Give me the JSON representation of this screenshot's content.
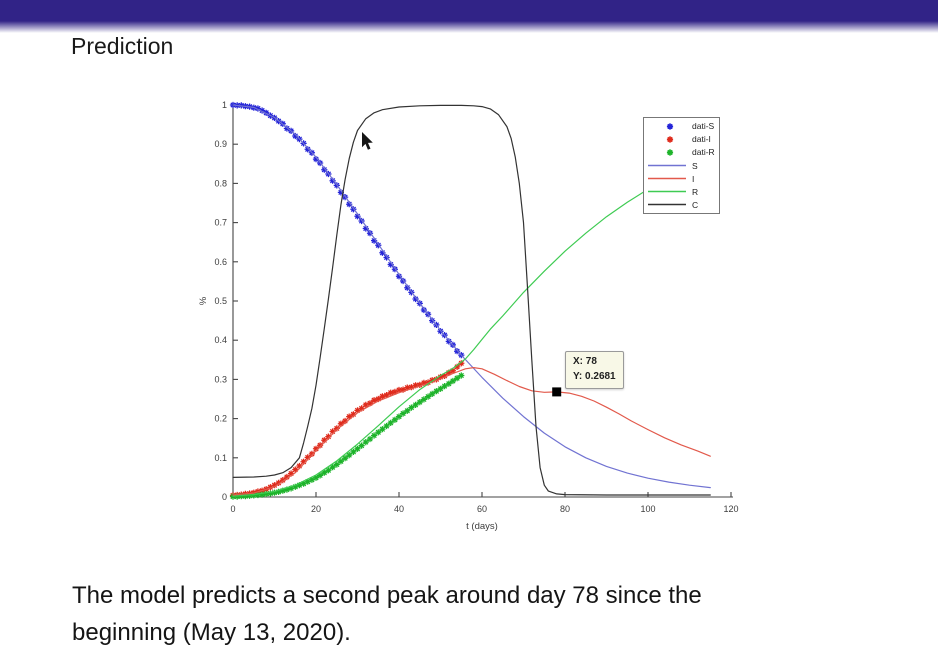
{
  "slide": {
    "title": "Prediction",
    "caption": {
      "line1": "The model predicts a second peak around day 78 since the",
      "line2": "beginning (May 13, 2020)."
    },
    "topbar_color": "#312387"
  },
  "tooltip": {
    "x_label": "X: 78",
    "y_label": "Y: 0.2681",
    "background": "#f8f8e7"
  },
  "chart_data": {
    "type": "line",
    "title": "",
    "xlabel": "t (days)",
    "ylabel": "%",
    "xlim": [
      0,
      120
    ],
    "ylim": [
      0,
      1
    ],
    "grid": false,
    "legend_position": "top-right",
    "xticks": [
      0,
      20,
      40,
      60,
      80,
      100,
      120
    ],
    "yticks": [
      0,
      0.1,
      0.2,
      0.3,
      0.4,
      0.5,
      0.6,
      0.7,
      0.8,
      0.9,
      1
    ],
    "ytick_labels": [
      "0",
      "0.1",
      "0.2",
      "0.3",
      "0.4",
      "0.5",
      "0.6",
      "0.7",
      "0.8",
      "0.9",
      "1"
    ],
    "annotation": {
      "x": 78,
      "y": 0.2681,
      "marker": "black-square"
    },
    "series": [
      {
        "name": "dati-S",
        "style": "markers",
        "marker": "asterisk",
        "color": "#2424d8",
        "points": [
          [
            0,
            1.0
          ],
          [
            1,
            0.999
          ],
          [
            2,
            0.999
          ],
          [
            3,
            0.997
          ],
          [
            4,
            0.996
          ],
          [
            5,
            0.993
          ],
          [
            6,
            0.991
          ],
          [
            7,
            0.986
          ],
          [
            8,
            0.98
          ],
          [
            9,
            0.973
          ],
          [
            10,
            0.967
          ],
          [
            11,
            0.959
          ],
          [
            12,
            0.952
          ],
          [
            13,
            0.94
          ],
          [
            14,
            0.934
          ],
          [
            15,
            0.921
          ],
          [
            16,
            0.913
          ],
          [
            17,
            0.902
          ],
          [
            18,
            0.887
          ],
          [
            19,
            0.878
          ],
          [
            20,
            0.862
          ],
          [
            21,
            0.852
          ],
          [
            22,
            0.835
          ],
          [
            23,
            0.824
          ],
          [
            24,
            0.807
          ],
          [
            25,
            0.795
          ],
          [
            26,
            0.777
          ],
          [
            27,
            0.765
          ],
          [
            28,
            0.747
          ],
          [
            29,
            0.734
          ],
          [
            30,
            0.716
          ],
          [
            31,
            0.704
          ],
          [
            32,
            0.685
          ],
          [
            33,
            0.673
          ],
          [
            34,
            0.654
          ],
          [
            35,
            0.642
          ],
          [
            36,
            0.623
          ],
          [
            37,
            0.611
          ],
          [
            38,
            0.593
          ],
          [
            39,
            0.581
          ],
          [
            40,
            0.563
          ],
          [
            41,
            0.551
          ],
          [
            42,
            0.534
          ],
          [
            43,
            0.522
          ],
          [
            44,
            0.505
          ],
          [
            45,
            0.494
          ],
          [
            46,
            0.477
          ],
          [
            47,
            0.466
          ],
          [
            48,
            0.45
          ],
          [
            49,
            0.439
          ],
          [
            50,
            0.423
          ],
          [
            51,
            0.413
          ],
          [
            52,
            0.397
          ],
          [
            53,
            0.388
          ],
          [
            54,
            0.372
          ],
          [
            55,
            0.362
          ]
        ]
      },
      {
        "name": "dati-I",
        "style": "markers",
        "marker": "asterisk",
        "color": "#df2b1c",
        "points": [
          [
            0,
            0.004
          ],
          [
            1,
            0.005
          ],
          [
            2,
            0.006
          ],
          [
            3,
            0.008
          ],
          [
            4,
            0.009
          ],
          [
            5,
            0.011
          ],
          [
            6,
            0.014
          ],
          [
            7,
            0.016
          ],
          [
            8,
            0.02
          ],
          [
            9,
            0.025
          ],
          [
            10,
            0.03
          ],
          [
            11,
            0.036
          ],
          [
            12,
            0.043
          ],
          [
            13,
            0.051
          ],
          [
            14,
            0.06
          ],
          [
            15,
            0.07
          ],
          [
            16,
            0.079
          ],
          [
            17,
            0.09
          ],
          [
            18,
            0.101
          ],
          [
            19,
            0.11
          ],
          [
            20,
            0.123
          ],
          [
            21,
            0.132
          ],
          [
            22,
            0.145
          ],
          [
            23,
            0.154
          ],
          [
            24,
            0.167
          ],
          [
            25,
            0.175
          ],
          [
            26,
            0.187
          ],
          [
            27,
            0.194
          ],
          [
            28,
            0.205
          ],
          [
            29,
            0.211
          ],
          [
            30,
            0.221
          ],
          [
            31,
            0.226
          ],
          [
            32,
            0.235
          ],
          [
            33,
            0.239
          ],
          [
            34,
            0.247
          ],
          [
            35,
            0.25
          ],
          [
            36,
            0.257
          ],
          [
            37,
            0.26
          ],
          [
            38,
            0.266
          ],
          [
            39,
            0.268
          ],
          [
            40,
            0.273
          ],
          [
            41,
            0.274
          ],
          [
            42,
            0.279
          ],
          [
            43,
            0.28
          ],
          [
            44,
            0.285
          ],
          [
            45,
            0.286
          ],
          [
            46,
            0.291
          ],
          [
            47,
            0.292
          ],
          [
            48,
            0.298
          ],
          [
            49,
            0.3
          ],
          [
            50,
            0.306
          ],
          [
            51,
            0.309
          ],
          [
            52,
            0.317
          ],
          [
            53,
            0.322
          ],
          [
            54,
            0.332
          ],
          [
            55,
            0.341
          ]
        ]
      },
      {
        "name": "dati-R",
        "style": "markers",
        "marker": "asterisk",
        "color": "#1db32a",
        "points": [
          [
            0,
            0.001
          ],
          [
            1,
            0.001
          ],
          [
            2,
            0.002
          ],
          [
            3,
            0.002
          ],
          [
            4,
            0.003
          ],
          [
            5,
            0.004
          ],
          [
            6,
            0.005
          ],
          [
            7,
            0.006
          ],
          [
            8,
            0.008
          ],
          [
            9,
            0.009
          ],
          [
            10,
            0.011
          ],
          [
            11,
            0.013
          ],
          [
            12,
            0.016
          ],
          [
            13,
            0.019
          ],
          [
            14,
            0.022
          ],
          [
            15,
            0.026
          ],
          [
            16,
            0.03
          ],
          [
            17,
            0.034
          ],
          [
            18,
            0.039
          ],
          [
            19,
            0.044
          ],
          [
            20,
            0.049
          ],
          [
            21,
            0.055
          ],
          [
            22,
            0.062
          ],
          [
            23,
            0.068
          ],
          [
            24,
            0.076
          ],
          [
            25,
            0.083
          ],
          [
            26,
            0.091
          ],
          [
            27,
            0.099
          ],
          [
            28,
            0.107
          ],
          [
            29,
            0.115
          ],
          [
            30,
            0.123
          ],
          [
            31,
            0.131
          ],
          [
            32,
            0.14
          ],
          [
            33,
            0.148
          ],
          [
            34,
            0.157
          ],
          [
            35,
            0.165
          ],
          [
            36,
            0.173
          ],
          [
            37,
            0.181
          ],
          [
            38,
            0.189
          ],
          [
            39,
            0.197
          ],
          [
            40,
            0.205
          ],
          [
            41,
            0.213
          ],
          [
            42,
            0.22
          ],
          [
            43,
            0.228
          ],
          [
            44,
            0.235
          ],
          [
            45,
            0.242
          ],
          [
            46,
            0.249
          ],
          [
            47,
            0.256
          ],
          [
            48,
            0.263
          ],
          [
            49,
            0.27
          ],
          [
            50,
            0.276
          ],
          [
            51,
            0.283
          ],
          [
            52,
            0.289
          ],
          [
            53,
            0.296
          ],
          [
            54,
            0.303
          ],
          [
            55,
            0.31
          ]
        ]
      },
      {
        "name": "S",
        "style": "line",
        "color": "#7173d2",
        "points": [
          [
            0,
            1.0
          ],
          [
            5,
            0.994
          ],
          [
            10,
            0.968
          ],
          [
            15,
            0.925
          ],
          [
            20,
            0.867
          ],
          [
            25,
            0.797
          ],
          [
            30,
            0.722
          ],
          [
            35,
            0.645
          ],
          [
            40,
            0.568
          ],
          [
            45,
            0.494
          ],
          [
            50,
            0.425
          ],
          [
            55,
            0.362
          ],
          [
            60,
            0.305
          ],
          [
            65,
            0.252
          ],
          [
            70,
            0.205
          ],
          [
            75,
            0.163
          ],
          [
            80,
            0.128
          ],
          [
            85,
            0.1
          ],
          [
            90,
            0.078
          ],
          [
            95,
            0.061
          ],
          [
            100,
            0.048
          ],
          [
            105,
            0.038
          ],
          [
            110,
            0.03
          ],
          [
            115,
            0.024
          ]
        ]
      },
      {
        "name": "I",
        "style": "line",
        "color": "#e2594b",
        "points": [
          [
            0,
            0.005
          ],
          [
            5,
            0.01
          ],
          [
            10,
            0.026
          ],
          [
            15,
            0.062
          ],
          [
            20,
            0.118
          ],
          [
            25,
            0.172
          ],
          [
            30,
            0.215
          ],
          [
            35,
            0.245
          ],
          [
            40,
            0.266
          ],
          [
            45,
            0.283
          ],
          [
            50,
            0.301
          ],
          [
            53,
            0.315
          ],
          [
            56,
            0.327
          ],
          [
            58,
            0.33
          ],
          [
            60,
            0.327
          ],
          [
            63,
            0.313
          ],
          [
            66,
            0.297
          ],
          [
            69,
            0.282
          ],
          [
            72,
            0.271
          ],
          [
            75,
            0.267
          ],
          [
            78,
            0.2681
          ],
          [
            81,
            0.265
          ],
          [
            84,
            0.257
          ],
          [
            87,
            0.245
          ],
          [
            90,
            0.229
          ],
          [
            93,
            0.212
          ],
          [
            96,
            0.194
          ],
          [
            100,
            0.172
          ],
          [
            104,
            0.151
          ],
          [
            108,
            0.133
          ],
          [
            112,
            0.117
          ],
          [
            115,
            0.104
          ]
        ]
      },
      {
        "name": "R",
        "style": "line",
        "color": "#3ecb52",
        "points": [
          [
            0,
            0.002
          ],
          [
            5,
            0.006
          ],
          [
            10,
            0.014
          ],
          [
            15,
            0.03
          ],
          [
            20,
            0.056
          ],
          [
            25,
            0.092
          ],
          [
            30,
            0.135
          ],
          [
            35,
            0.182
          ],
          [
            40,
            0.23
          ],
          [
            45,
            0.274
          ],
          [
            50,
            0.31
          ],
          [
            53,
            0.328
          ],
          [
            56,
            0.352
          ],
          [
            58,
            0.376
          ],
          [
            60,
            0.402
          ],
          [
            62,
            0.428
          ],
          [
            65,
            0.462
          ],
          [
            70,
            0.522
          ],
          [
            75,
            0.576
          ],
          [
            80,
            0.627
          ],
          [
            85,
            0.673
          ],
          [
            90,
            0.715
          ],
          [
            95,
            0.752
          ],
          [
            100,
            0.785
          ],
          [
            105,
            0.814
          ],
          [
            110,
            0.84
          ],
          [
            115,
            0.862
          ]
        ]
      },
      {
        "name": "C",
        "style": "line",
        "color": "#333333",
        "points": [
          [
            0,
            0.05
          ],
          [
            5,
            0.051
          ],
          [
            8,
            0.053
          ],
          [
            10,
            0.056
          ],
          [
            12,
            0.062
          ],
          [
            14,
            0.075
          ],
          [
            16,
            0.1
          ],
          [
            17,
            0.138
          ],
          [
            18,
            0.18
          ],
          [
            19,
            0.226
          ],
          [
            20,
            0.285
          ],
          [
            21,
            0.355
          ],
          [
            22,
            0.43
          ],
          [
            23,
            0.505
          ],
          [
            24,
            0.585
          ],
          [
            25,
            0.668
          ],
          [
            26,
            0.745
          ],
          [
            27,
            0.81
          ],
          [
            28,
            0.863
          ],
          [
            29,
            0.905
          ],
          [
            30,
            0.935
          ],
          [
            32,
            0.965
          ],
          [
            34,
            0.98
          ],
          [
            36,
            0.988
          ],
          [
            40,
            0.995
          ],
          [
            45,
            0.998
          ],
          [
            50,
            0.999
          ],
          [
            55,
            0.999
          ],
          [
            58,
            0.998
          ],
          [
            60,
            0.996
          ],
          [
            62,
            0.99
          ],
          [
            64,
            0.975
          ],
          [
            66,
            0.945
          ],
          [
            67,
            0.915
          ],
          [
            68,
            0.868
          ],
          [
            69,
            0.8
          ],
          [
            70,
            0.7
          ],
          [
            71,
            0.53
          ],
          [
            72,
            0.35
          ],
          [
            73,
            0.18
          ],
          [
            74,
            0.075
          ],
          [
            75,
            0.03
          ],
          [
            76,
            0.015
          ],
          [
            78,
            0.008
          ],
          [
            80,
            0.006
          ],
          [
            90,
            0.005
          ],
          [
            100,
            0.005
          ],
          [
            115,
            0.005
          ]
        ]
      }
    ]
  }
}
